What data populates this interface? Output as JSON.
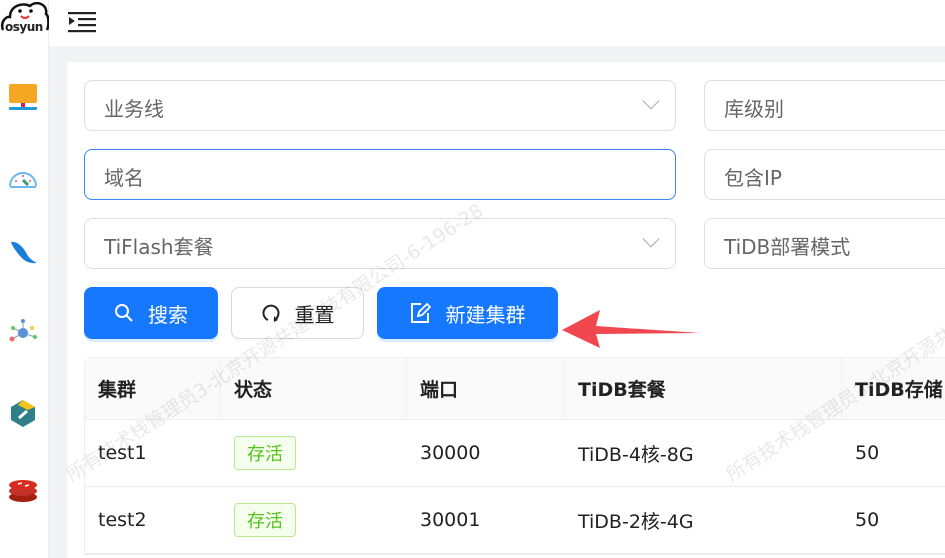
{
  "logo": {
    "text": "osyun"
  },
  "sidebar": {
    "items": [
      {
        "icon": "monitor-icon"
      },
      {
        "icon": "dashboard-gauge-icon"
      },
      {
        "icon": "mysql-dolphin-icon"
      },
      {
        "icon": "network-nodes-icon"
      },
      {
        "icon": "tidb-icon"
      },
      {
        "icon": "redis-icon"
      }
    ]
  },
  "header": {
    "menu_icon": "menu-indent-icon"
  },
  "filters": {
    "business_line": {
      "placeholder": "业务线"
    },
    "db_level": {
      "placeholder": "库级别"
    },
    "domain": {
      "placeholder": "域名"
    },
    "contains_ip": {
      "placeholder": "包含IP"
    },
    "tiflash_package": {
      "placeholder": "TiFlash套餐"
    },
    "tidb_deploy_mode": {
      "placeholder": "TiDB部署模式"
    }
  },
  "buttons": {
    "search": "搜索",
    "reset": "重置",
    "create_cluster": "新建集群"
  },
  "table": {
    "columns": [
      "集群",
      "状态",
      "端口",
      "TiDB套餐",
      "TiDB存储"
    ],
    "rows": [
      {
        "cluster": "test1",
        "status": "存活",
        "port": "30000",
        "tidb_package": "TiDB-4核-8G",
        "tidb_storage": "50"
      },
      {
        "cluster": "test2",
        "status": "存活",
        "port": "30001",
        "tidb_package": "TiDB-2核-4G",
        "tidb_storage": "50"
      }
    ]
  },
  "watermark": "所有技术栈管理员3-北京开源共建科技有限公司-6-196-28",
  "colors": {
    "primary": "#1677ff",
    "success": "#52c41a",
    "annotation_arrow": "#f0484e"
  }
}
